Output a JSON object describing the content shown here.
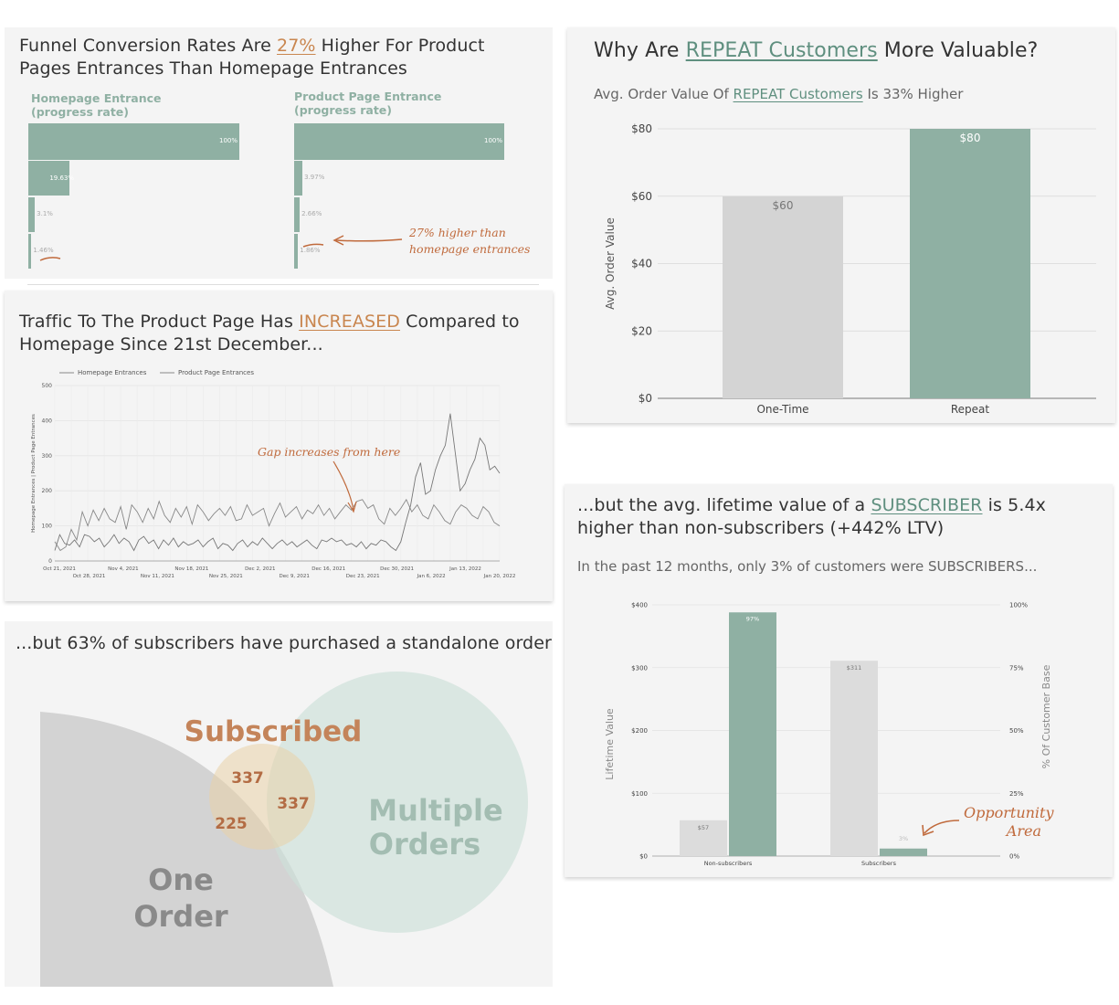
{
  "funnel": {
    "title_pre": "Funnel Conversion Rates Are ",
    "title_hl": "27%",
    "title_post": " Higher For Product Pages Entrances Than Homepage Entrances",
    "left_label_1": "Homepage Entrance",
    "left_label_2": "(progress rate)",
    "right_label_1": "Product Page Entrance",
    "right_label_2": "(progress rate)",
    "left_values": [
      "100%",
      "19.63%",
      "3.1%",
      "1.46%"
    ],
    "left_numbers": [
      100,
      19.63,
      3.1,
      1.46
    ],
    "right_values": [
      "100%",
      "3.97%",
      "2.66%",
      "1.86%"
    ],
    "right_numbers": [
      100,
      3.97,
      2.66,
      1.86
    ],
    "annotation_1": "27% higher than",
    "annotation_2": "homepage entrances"
  },
  "traffic": {
    "title_pre": "Traffic To The Product Page Has ",
    "title_hl": "INCREASED",
    "title_post": " Compared to Homepage Since 21st December...",
    "annotation": "Gap increases from here"
  },
  "repeat": {
    "title_pre": "Why Are ",
    "title_hl": "REPEAT Customers",
    "title_post": " More Valuable?",
    "subtitle_pre": "Avg. Order Value Of ",
    "subtitle_hl": "REPEAT Customers",
    "subtitle_post": " Is 33% Higher"
  },
  "ltv": {
    "title_pre": "...but the avg. lifetime value of a ",
    "title_hl": "SUBSCRIBER",
    "title_post": " is 5.4x higher than non-subscribers (+442% LTV)",
    "subtitle": "In the past 12 months, only 3% of customers were SUBSCRIBERS...",
    "annotation_1": "Opportunity",
    "annotation_2": "Area"
  },
  "venn": {
    "title": "...but 63% of subscribers have purchased a standalone order",
    "subscribed": "Subscribed",
    "multiple_1": "Multiple",
    "multiple_2": "Orders",
    "one_1": "One",
    "one_2": "Order",
    "n1": "337",
    "n2": "337",
    "n3": "225"
  },
  "colors": {
    "green": "#8fb0a3",
    "grey": "#d4d4d4",
    "orange": "#c9864f",
    "panel": "#f4f4f4"
  },
  "chart_data": [
    {
      "type": "line",
      "id": "traffic",
      "series": [
        {
          "name": "Homepage Entrances",
          "values": [
            55,
            30,
            40,
            90,
            60,
            140,
            100,
            145,
            115,
            150,
            120,
            110,
            155,
            90,
            160,
            140,
            110,
            150,
            120,
            170,
            130,
            110,
            150,
            125,
            155,
            105,
            160,
            140,
            115,
            135,
            150,
            130,
            155,
            115,
            120,
            160,
            130,
            140,
            150,
            100,
            135,
            165,
            125,
            140,
            155,
            120,
            145,
            135,
            160,
            130,
            150,
            120,
            140,
            160,
            145,
            170,
            175,
            150,
            160,
            120,
            105,
            150,
            130,
            150,
            175,
            140,
            160,
            130,
            120,
            160,
            140,
            115,
            105,
            140,
            160,
            150,
            130,
            120,
            155,
            140,
            110,
            100
          ]
        },
        {
          "name": "Product Page Entrances",
          "values": [
            30,
            75,
            50,
            45,
            60,
            40,
            75,
            70,
            55,
            65,
            40,
            55,
            75,
            50,
            65,
            55,
            30,
            60,
            70,
            50,
            60,
            35,
            60,
            45,
            65,
            40,
            55,
            45,
            50,
            60,
            40,
            55,
            65,
            35,
            50,
            45,
            30,
            50,
            60,
            40,
            55,
            45,
            65,
            50,
            35,
            50,
            60,
            45,
            55,
            40,
            50,
            60,
            45,
            35,
            60,
            55,
            65,
            55,
            60,
            45,
            50,
            40,
            55,
            35,
            50,
            45,
            60,
            55,
            40,
            30,
            55,
            110,
            160,
            240,
            280,
            190,
            200,
            260,
            300,
            330,
            420,
            310,
            200,
            220,
            260,
            290,
            350,
            330,
            260,
            270,
            250
          ]
        }
      ],
      "x_tick_labels": [
        "Oct 21, 2021",
        "Oct 28, 2021",
        "Nov 4, 2021",
        "Nov 11, 2021",
        "Nov 18, 2021",
        "Nov 25, 2021",
        "Dec 2, 2021",
        "Dec 9, 2021",
        "Dec 16, 2021",
        "Dec 23, 2021",
        "Dec 30, 2021",
        "Jan 6, 2022",
        "Jan 13, 2022",
        "Jan 20, 2022"
      ],
      "ylabel": "Homepage Entrances | Product Page Entrances",
      "ylim": [
        0,
        500
      ],
      "y_ticks": [
        0,
        100,
        200,
        300,
        400,
        500
      ],
      "legend": "top-left",
      "grid": true
    },
    {
      "type": "bar",
      "id": "aov",
      "categories": [
        "One-Time",
        "Repeat"
      ],
      "values": [
        60,
        80
      ],
      "value_labels": [
        "$60",
        "$80"
      ],
      "ylabel": "Avg. Order Value",
      "ylim": [
        0,
        80
      ],
      "y_tick_labels": [
        "$80",
        "$60",
        "$40",
        "$20",
        "$0"
      ],
      "y_ticks": [
        80,
        60,
        40,
        20,
        0
      ]
    },
    {
      "type": "bar",
      "id": "ltv",
      "categories": [
        "Non-subscribers",
        "Subscribers"
      ],
      "series": [
        {
          "values": [
            57,
            311
          ],
          "value_labels": [
            "$57",
            "$311"
          ],
          "axis": "left"
        },
        {
          "values": [
            97,
            3
          ],
          "value_labels": [
            "97%",
            "3%"
          ],
          "axis": "right"
        }
      ],
      "ylabel": "Lifetime Value",
      "y2label": "% Of Customer Base",
      "ylim": [
        0,
        400
      ],
      "y2lim": [
        0,
        100
      ],
      "y_tick_labels": [
        "$400",
        "$300",
        "$200",
        "$100",
        "$0"
      ],
      "y2_tick_labels": [
        "100%",
        "75%",
        "50%",
        "25%",
        "0%"
      ]
    }
  ]
}
